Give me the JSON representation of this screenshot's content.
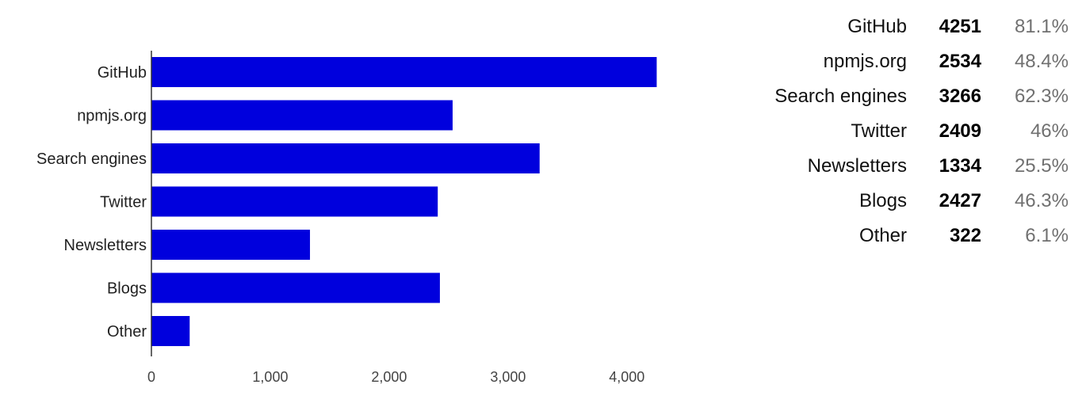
{
  "chart_data": {
    "type": "bar",
    "orientation": "horizontal",
    "categories": [
      "GitHub",
      "npmjs.org",
      "Search engines",
      "Twitter",
      "Newsletters",
      "Blogs",
      "Other"
    ],
    "values": [
      4251,
      2534,
      3266,
      2409,
      1334,
      2427,
      322
    ],
    "percentages": [
      "81.1%",
      "48.4%",
      "62.3%",
      "46%",
      "25.5%",
      "46.3%",
      "6.1%"
    ],
    "xlim": [
      0,
      4251
    ],
    "xticks": [
      0,
      1000,
      2000,
      3000,
      4000
    ],
    "xtick_labels": [
      "0",
      "1,000",
      "2,000",
      "3,000",
      "4,000"
    ],
    "bar_color": "#0000dd",
    "grid": false,
    "legend": "none"
  }
}
